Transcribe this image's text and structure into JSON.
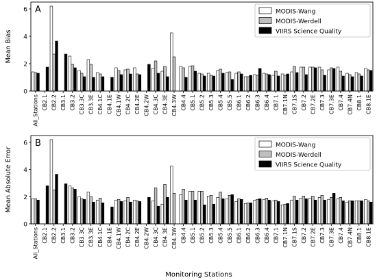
{
  "x_axis_label": "Monitoring Stations",
  "colors": {
    "wang": "#ffffff",
    "werdell": "#bfbfbf",
    "viirs": "#000000"
  },
  "chart_data": [
    {
      "type": "bar",
      "panel_letter": "A",
      "ylabel": "Mean Bias",
      "xlabel": "",
      "ylim": [
        0,
        6.5
      ],
      "yticks": [
        0,
        2,
        4,
        6
      ],
      "grid": false,
      "legend_position": "top-right",
      "categories": [
        "All_Stations",
        "CB2.1",
        "CB2.2",
        "CB3.1",
        "CB3.2",
        "CB3.3C",
        "CB3.3E",
        "CB4.1C",
        "CB4.1E",
        "CB4.1W",
        "CB4.2C",
        "CB4.2E",
        "CB4.2W",
        "CB4.3C",
        "CB4.3E",
        "CB4.3W",
        "CB4.4",
        "CB5.1",
        "CB5.2",
        "CB5.3",
        "CB5.4",
        "CB5.5",
        "CB6.1",
        "CB6.2",
        "CB6.3",
        "CB6.4",
        "CB7.1",
        "CB7.1N",
        "CB7.1S",
        "CB7.2",
        "CB7.2E",
        "CB7.3",
        "CB7.3E",
        "CB7.4",
        "CB7.4N",
        "CB8.1",
        "CB8.1E"
      ],
      "series": [
        {
          "name": "MODIS-Wang",
          "values": [
            1.4,
            null,
            6.2,
            null,
            2.55,
            1.5,
            2.3,
            1.35,
            null,
            1.7,
            1.55,
            1.7,
            null,
            1.65,
            1.45,
            4.25,
            1.8,
            1.8,
            1.3,
            1.3,
            1.5,
            1.35,
            1.3,
            1.05,
            1.2,
            1.3,
            1.15,
            1.25,
            1.4,
            1.75,
            1.75,
            1.75,
            1.55,
            1.75,
            1.3,
            1.35,
            1.65
          ]
        },
        {
          "name": "MODIS-Werdell",
          "values": [
            1.35,
            null,
            2.7,
            null,
            1.95,
            1.3,
            1.95,
            1.25,
            null,
            1.5,
            1.6,
            1.25,
            null,
            2.2,
            1.8,
            2.5,
            1.7,
            1.85,
            1.25,
            1.15,
            1.6,
            1.4,
            1.4,
            1.05,
            1.15,
            1.25,
            1.45,
            1.15,
            1.8,
            1.75,
            1.75,
            1.55,
            1.7,
            1.45,
            1.2,
            1.25,
            1.55
          ]
        },
        {
          "name": "VIIRS Science Quality",
          "values": [
            1.3,
            1.75,
            3.65,
            2.7,
            1.7,
            1.05,
            1.0,
            1.05,
            1.0,
            1.2,
            1.25,
            1.2,
            1.95,
            1.3,
            1.05,
            null,
            1.0,
            1.45,
            1.1,
            1.1,
            1.3,
            0.85,
            1.25,
            1.15,
            1.65,
            1.2,
            1.1,
            1.25,
            1.35,
            1.2,
            1.7,
            1.15,
            1.65,
            1.1,
            1.05,
            1.1,
            1.5
          ]
        }
      ]
    },
    {
      "type": "bar",
      "panel_letter": "B",
      "ylabel": "Mean Absolute Error",
      "xlabel": "Monitoring Stations",
      "ylim": [
        0,
        6.5
      ],
      "yticks": [
        0,
        2,
        4,
        6
      ],
      "grid": false,
      "legend_position": "top-right",
      "categories": [
        "All_Stations",
        "CB2.1",
        "CB2.2",
        "CB3.1",
        "CB3.2",
        "CB3.3C",
        "CB3.3E",
        "CB4.1C",
        "CB4.1E",
        "CB4.1W",
        "CB4.2C",
        "CB4.2E",
        "CB4.2W",
        "CB4.3C",
        "CB4.3E",
        "CB4.3W",
        "CB4.4",
        "CB5.1",
        "CB5.2",
        "CB5.3",
        "CB5.4",
        "CB5.5",
        "CB6.1",
        "CB6.2",
        "CB6.3",
        "CB6.4",
        "CB7.1",
        "CB7.1N",
        "CB7.1S",
        "CB7.2",
        "CB7.2E",
        "CB7.3",
        "CB7.3E",
        "CB7.4",
        "CB7.4N",
        "CB8.1",
        "CB8.1E"
      ],
      "series": [
        {
          "name": "MODIS-Wang",
          "values": [
            1.85,
            null,
            6.2,
            null,
            2.8,
            2.0,
            2.35,
            1.75,
            null,
            1.75,
            1.7,
            1.75,
            null,
            1.7,
            1.45,
            4.25,
            2.15,
            2.4,
            2.4,
            2.05,
            1.95,
            1.85,
            1.65,
            1.5,
            1.75,
            1.8,
            1.7,
            1.4,
            1.75,
            1.9,
            1.9,
            1.95,
            1.8,
            1.85,
            1.6,
            1.7,
            1.8
          ]
        },
        {
          "name": "MODIS-Werdell",
          "values": [
            1.85,
            null,
            2.5,
            null,
            2.65,
            1.85,
            2.0,
            1.9,
            null,
            1.8,
            1.95,
            1.7,
            null,
            2.65,
            2.9,
            2.25,
            2.55,
            2.4,
            2.4,
            2.1,
            2.35,
            2.1,
            1.85,
            1.55,
            1.8,
            1.9,
            1.75,
            1.45,
            2.05,
            2.05,
            2.05,
            2.1,
            1.95,
            1.95,
            1.7,
            1.7,
            1.7
          ]
        },
        {
          "name": "VIIRS Science Quality",
          "values": [
            1.75,
            2.8,
            3.65,
            2.95,
            2.55,
            1.8,
            1.6,
            1.55,
            1.25,
            1.65,
            1.6,
            1.65,
            1.95,
            1.3,
            1.95,
            null,
            1.75,
            1.75,
            1.4,
            1.45,
            1.85,
            2.15,
            1.8,
            1.55,
            1.85,
            1.75,
            1.65,
            1.5,
            1.75,
            1.85,
            1.75,
            1.75,
            2.25,
            1.7,
            1.7,
            1.7,
            1.6
          ]
        }
      ]
    }
  ]
}
